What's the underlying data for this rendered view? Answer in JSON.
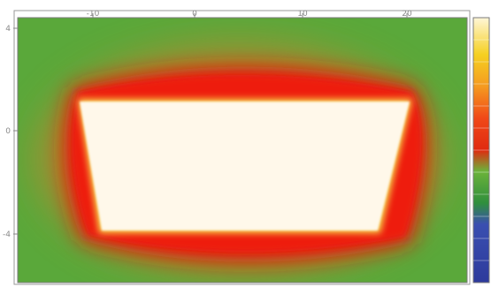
{
  "chart_data": {
    "type": "heatmap",
    "title": "",
    "xlabel": "",
    "ylabel": "",
    "x_ticks": [
      "-10",
      "0",
      "10",
      "20"
    ],
    "y_ticks": [
      "4",
      "0",
      "-4"
    ],
    "colorbar_labels": [],
    "colormap": [
      "#2d3a9c",
      "#2f8f3d",
      "#6bb33a",
      "#e02a10",
      "#f04818",
      "#f59a20",
      "#f5d020",
      "#fff6d8",
      "#fffaf0"
    ],
    "field_description": "bright white trapezoidal core surrounded by a red band that fades through orange to green background"
  }
}
